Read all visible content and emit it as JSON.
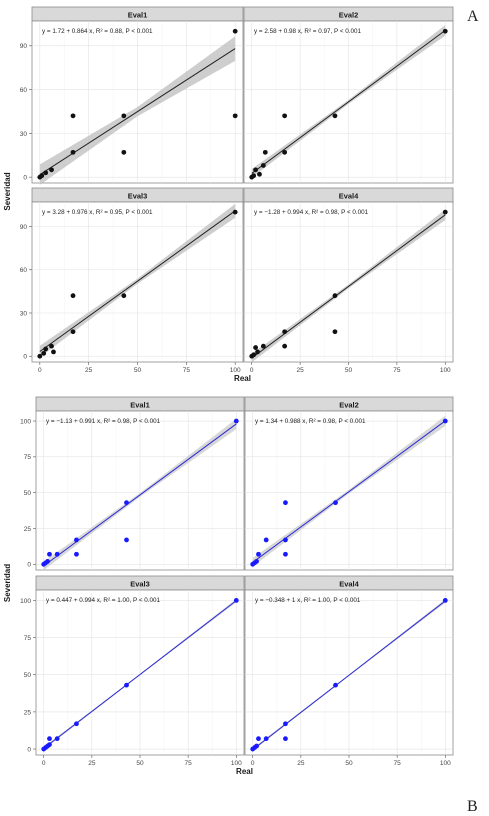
{
  "figures": [
    {
      "letter": "A",
      "xlabel": "Real",
      "ylabel": "Severidad",
      "fit_color": "#222222",
      "ci_color": "#bdbdbd",
      "point_color": "#111111",
      "y_ticks": [
        0,
        30,
        60,
        90
      ],
      "ylim": [
        -4,
        107
      ],
      "x_ticks": [
        0,
        25,
        50,
        75,
        100
      ],
      "x_tick_labels_shown": false,
      "panels": [
        {
          "title": "Eval1",
          "equation": "y = 1.72 + 0.864 x, R² = 0.88, P < 0.001",
          "intercept": 1.72,
          "slope": 0.864,
          "ci": 7,
          "points": [
            [
              0,
              0
            ],
            [
              1,
              1
            ],
            [
              3,
              3
            ],
            [
              6,
              5
            ],
            [
              17,
              17
            ],
            [
              17,
              42
            ],
            [
              43,
              42
            ],
            [
              43,
              17
            ],
            [
              100,
              100
            ],
            [
              100,
              42
            ]
          ]
        },
        {
          "title": "Eval2",
          "equation": "y = 2.58 + 0.98 x, R² = 0.97, P < 0.001",
          "intercept": 2.58,
          "slope": 0.98,
          "ci": 3,
          "points": [
            [
              0,
              0
            ],
            [
              1,
              1
            ],
            [
              2,
              5
            ],
            [
              4,
              2
            ],
            [
              6,
              8
            ],
            [
              7,
              17
            ],
            [
              17,
              17
            ],
            [
              17,
              42
            ],
            [
              43,
              42
            ],
            [
              100,
              100
            ]
          ]
        }
      ],
      "panels_bottom": [
        {
          "title": "Eval3",
          "equation": "y = 3.28 + 0.976 x, R² = 0.95, P < 0.001",
          "intercept": 3.28,
          "slope": 0.976,
          "ci": 4,
          "points": [
            [
              0,
              0
            ],
            [
              2,
              2
            ],
            [
              3,
              5
            ],
            [
              6,
              7
            ],
            [
              7,
              3
            ],
            [
              17,
              17
            ],
            [
              17,
              42
            ],
            [
              43,
              42
            ],
            [
              100,
              100
            ]
          ]
        },
        {
          "title": "Eval4",
          "equation": "y = −1.28 + 0.994 x, R² = 0.98, P < 0.001",
          "intercept": -1.28,
          "slope": 0.994,
          "ci": 3,
          "points": [
            [
              0,
              0
            ],
            [
              1,
              1
            ],
            [
              2,
              6
            ],
            [
              3,
              3
            ],
            [
              6,
              7
            ],
            [
              17,
              17
            ],
            [
              17,
              7
            ],
            [
              43,
              42
            ],
            [
              43,
              17
            ],
            [
              100,
              100
            ]
          ]
        }
      ],
      "x_tick_labels": [
        "0",
        "25",
        "50",
        "75",
        "100"
      ]
    },
    {
      "letter": "B",
      "xlabel": "Real",
      "ylabel": "Severidad",
      "fit_color": "#2a2ad6",
      "ci_color": "#c9c9c9",
      "point_color": "#1a1aff",
      "y_ticks": [
        0,
        25,
        50,
        75,
        100
      ],
      "ylim": [
        -4,
        107
      ],
      "x_ticks": [
        0,
        25,
        50,
        75,
        100
      ],
      "panels": [
        {
          "title": "Eval1",
          "equation": "y = −1.13 + 0.991 x, R² = 0.98, P < 0.001",
          "intercept": -1.13,
          "slope": 0.991,
          "ci": 3,
          "points": [
            [
              0,
              0
            ],
            [
              1,
              1
            ],
            [
              2,
              2
            ],
            [
              3,
              7
            ],
            [
              7,
              7
            ],
            [
              17,
              17
            ],
            [
              17,
              7
            ],
            [
              43,
              43
            ],
            [
              43,
              17
            ],
            [
              100,
              100
            ]
          ]
        },
        {
          "title": "Eval2",
          "equation": "y = 1.34 + 0.988 x, R² = 0.98, P < 0.001",
          "intercept": 1.34,
          "slope": 0.988,
          "ci": 3,
          "points": [
            [
              0,
              0
            ],
            [
              1,
              1
            ],
            [
              2,
              2
            ],
            [
              3,
              7
            ],
            [
              7,
              17
            ],
            [
              17,
              17
            ],
            [
              17,
              43
            ],
            [
              43,
              43
            ],
            [
              17,
              7
            ],
            [
              100,
              100
            ]
          ]
        }
      ],
      "panels_bottom": [
        {
          "title": "Eval3",
          "equation": "y = 0.447 + 0.994 x, R² = 1.00, P < 0.001",
          "intercept": 0.447,
          "slope": 0.994,
          "ci": 1,
          "points": [
            [
              0,
              0
            ],
            [
              1,
              1
            ],
            [
              2,
              2
            ],
            [
              3,
              3
            ],
            [
              3,
              7
            ],
            [
              7,
              7
            ],
            [
              17,
              17
            ],
            [
              43,
              43
            ],
            [
              100,
              100
            ]
          ]
        },
        {
          "title": "Eval4",
          "equation": "y = −0.348 + 1 x, R² = 1.00, P < 0.001",
          "intercept": -0.348,
          "slope": 1.0,
          "ci": 1,
          "points": [
            [
              0,
              0
            ],
            [
              1,
              1
            ],
            [
              2,
              2
            ],
            [
              3,
              7
            ],
            [
              7,
              7
            ],
            [
              17,
              17
            ],
            [
              17,
              7
            ],
            [
              43,
              43
            ],
            [
              100,
              100
            ]
          ]
        }
      ],
      "x_tick_labels": [
        "0",
        "25",
        "50",
        "75",
        "100"
      ]
    }
  ],
  "chart_data": [
    {
      "type": "scatter",
      "panel": "A-Eval1",
      "x": [
        0,
        1,
        3,
        6,
        17,
        17,
        43,
        43,
        100,
        100
      ],
      "y": [
        0,
        1,
        3,
        5,
        17,
        42,
        42,
        17,
        100,
        42
      ],
      "fit": {
        "intercept": 1.72,
        "slope": 0.864
      },
      "r2": 0.88,
      "xlabel": "Real",
      "ylabel": "Severidad"
    },
    {
      "type": "scatter",
      "panel": "A-Eval2",
      "x": [
        0,
        1,
        2,
        4,
        6,
        7,
        17,
        17,
        43,
        100
      ],
      "y": [
        0,
        1,
        5,
        2,
        8,
        17,
        17,
        42,
        42,
        100
      ],
      "fit": {
        "intercept": 2.58,
        "slope": 0.98
      },
      "r2": 0.97
    },
    {
      "type": "scatter",
      "panel": "A-Eval3",
      "x": [
        0,
        2,
        3,
        6,
        7,
        17,
        17,
        43,
        100
      ],
      "y": [
        0,
        2,
        5,
        7,
        3,
        17,
        42,
        42,
        100
      ],
      "fit": {
        "intercept": 3.28,
        "slope": 0.976
      },
      "r2": 0.95
    },
    {
      "type": "scatter",
      "panel": "A-Eval4",
      "x": [
        0,
        1,
        2,
        3,
        6,
        17,
        17,
        43,
        43,
        100
      ],
      "y": [
        0,
        1,
        6,
        3,
        7,
        17,
        7,
        42,
        17,
        100
      ],
      "fit": {
        "intercept": -1.28,
        "slope": 0.994
      },
      "r2": 0.98
    },
    {
      "type": "scatter",
      "panel": "B-Eval1",
      "x": [
        0,
        1,
        2,
        3,
        7,
        17,
        17,
        43,
        43,
        100
      ],
      "y": [
        0,
        1,
        2,
        7,
        7,
        17,
        7,
        43,
        17,
        100
      ],
      "fit": {
        "intercept": -1.13,
        "slope": 0.991
      },
      "r2": 0.98
    },
    {
      "type": "scatter",
      "panel": "B-Eval2",
      "x": [
        0,
        1,
        2,
        3,
        7,
        17,
        17,
        43,
        17,
        100
      ],
      "y": [
        0,
        1,
        2,
        7,
        17,
        17,
        43,
        43,
        7,
        100
      ],
      "fit": {
        "intercept": 1.34,
        "slope": 0.988
      },
      "r2": 0.98
    },
    {
      "type": "scatter",
      "panel": "B-Eval3",
      "x": [
        0,
        1,
        2,
        3,
        3,
        7,
        17,
        43,
        100
      ],
      "y": [
        0,
        1,
        2,
        3,
        7,
        7,
        17,
        43,
        100
      ],
      "fit": {
        "intercept": 0.447,
        "slope": 0.994
      },
      "r2": 1.0
    },
    {
      "type": "scatter",
      "panel": "B-Eval4",
      "x": [
        0,
        1,
        2,
        3,
        7,
        17,
        17,
        43,
        100
      ],
      "y": [
        0,
        1,
        2,
        7,
        7,
        17,
        7,
        43,
        100
      ],
      "fit": {
        "intercept": -0.348,
        "slope": 1.0
      },
      "r2": 1.0
    }
  ]
}
